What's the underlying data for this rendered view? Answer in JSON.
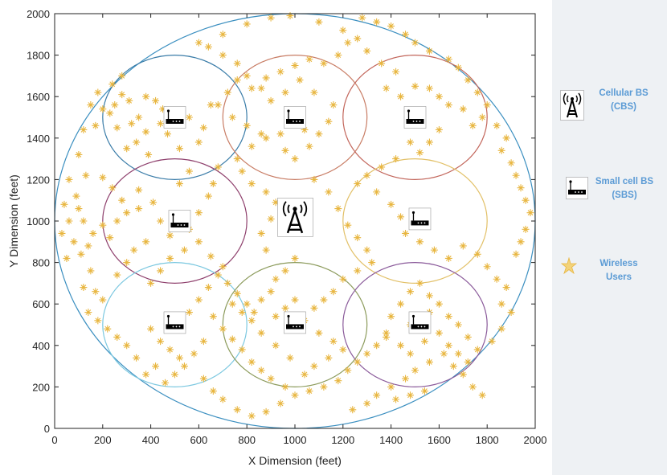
{
  "chart_data": {
    "type": "scatter",
    "xlabel": "X Dimension (feet)",
    "ylabel": "Y Dimension (feet)",
    "xlim": [
      0,
      2000
    ],
    "ylim": [
      0,
      2000
    ],
    "xticks": [
      0,
      200,
      400,
      600,
      800,
      1000,
      1200,
      1400,
      1600,
      1800,
      2000
    ],
    "yticks": [
      0,
      200,
      400,
      600,
      800,
      1000,
      1200,
      1400,
      1600,
      1800,
      2000
    ],
    "circles": [
      {
        "cx": 1000,
        "cy": 1000,
        "r": 1000,
        "color": "#3b8fc0"
      },
      {
        "cx": 500,
        "cy": 1500,
        "r": 300,
        "color": "#3a7ca8"
      },
      {
        "cx": 1000,
        "cy": 1500,
        "r": 300,
        "color": "#c87c64"
      },
      {
        "cx": 1500,
        "cy": 1500,
        "r": 300,
        "color": "#c2655a"
      },
      {
        "cx": 500,
        "cy": 1000,
        "r": 300,
        "color": "#8e3f6c"
      },
      {
        "cx": 1500,
        "cy": 1000,
        "r": 300,
        "color": "#e2c067"
      },
      {
        "cx": 500,
        "cy": 500,
        "r": 300,
        "color": "#7cc8e0"
      },
      {
        "cx": 1000,
        "cy": 500,
        "r": 300,
        "color": "#8c9b5c"
      },
      {
        "cx": 1500,
        "cy": 500,
        "r": 300,
        "color": "#8a5a9a"
      }
    ],
    "cellular_bs": {
      "x": 1000,
      "y": 1020
    },
    "small_cell_bs": [
      {
        "x": 500,
        "y": 1500
      },
      {
        "x": 1000,
        "y": 1500
      },
      {
        "x": 1500,
        "y": 1500
      },
      {
        "x": 520,
        "y": 1000
      },
      {
        "x": 1520,
        "y": 1010
      },
      {
        "x": 500,
        "y": 510
      },
      {
        "x": 1000,
        "y": 510
      },
      {
        "x": 1520,
        "y": 510
      }
    ],
    "users": [
      [
        250,
        1560
      ],
      [
        280,
        1610
      ],
      [
        310,
        1580
      ],
      [
        350,
        1500
      ],
      [
        320,
        1470
      ],
      [
        260,
        1450
      ],
      [
        230,
        1520
      ],
      [
        200,
        1540
      ],
      [
        380,
        1600
      ],
      [
        420,
        1580
      ],
      [
        440,
        1470
      ],
      [
        380,
        1430
      ],
      [
        340,
        1380
      ],
      [
        300,
        1350
      ],
      [
        390,
        1320
      ],
      [
        450,
        1540
      ],
      [
        560,
        1500
      ],
      [
        620,
        1450
      ],
      [
        650,
        1560
      ],
      [
        600,
        1380
      ],
      [
        520,
        1350
      ],
      [
        470,
        1420
      ],
      [
        280,
        1700
      ],
      [
        240,
        1660
      ],
      [
        180,
        1620
      ],
      [
        150,
        1560
      ],
      [
        170,
        1460
      ],
      [
        120,
        1440
      ],
      [
        100,
        1320
      ],
      [
        130,
        1220
      ],
      [
        90,
        1120
      ],
      [
        60,
        1000
      ],
      [
        80,
        900
      ],
      [
        110,
        840
      ],
      [
        150,
        760
      ],
      [
        170,
        660
      ],
      [
        200,
        620
      ],
      [
        120,
        680
      ],
      [
        260,
        740
      ],
      [
        300,
        800
      ],
      [
        330,
        860
      ],
      [
        380,
        900
      ],
      [
        230,
        920
      ],
      [
        200,
        980
      ],
      [
        260,
        1000
      ],
      [
        300,
        1040
      ],
      [
        350,
        1060
      ],
      [
        280,
        1100
      ],
      [
        240,
        1160
      ],
      [
        200,
        1210
      ],
      [
        350,
        1150
      ],
      [
        410,
        1090
      ],
      [
        440,
        1000
      ],
      [
        480,
        930
      ],
      [
        560,
        960
      ],
      [
        600,
        1040
      ],
      [
        640,
        1120
      ],
      [
        660,
        1180
      ],
      [
        680,
        1260
      ],
      [
        560,
        1240
      ],
      [
        520,
        1180
      ],
      [
        600,
        900
      ],
      [
        650,
        830
      ],
      [
        700,
        780
      ],
      [
        720,
        700
      ],
      [
        760,
        650
      ],
      [
        800,
        600
      ],
      [
        830,
        560
      ],
      [
        860,
        620
      ],
      [
        900,
        660
      ],
      [
        920,
        720
      ],
      [
        960,
        760
      ],
      [
        1000,
        820
      ],
      [
        880,
        860
      ],
      [
        860,
        940
      ],
      [
        900,
        1010
      ],
      [
        920,
        1090
      ],
      [
        880,
        1140
      ],
      [
        820,
        1180
      ],
      [
        780,
        1240
      ],
      [
        760,
        1300
      ],
      [
        820,
        1360
      ],
      [
        880,
        1400
      ],
      [
        940,
        1420
      ],
      [
        960,
        1340
      ],
      [
        1000,
        1300
      ],
      [
        1060,
        1360
      ],
      [
        1100,
        1420
      ],
      [
        1140,
        1480
      ],
      [
        1160,
        1560
      ],
      [
        1080,
        1620
      ],
      [
        1020,
        1680
      ],
      [
        960,
        1620
      ],
      [
        900,
        1580
      ],
      [
        860,
        1640
      ],
      [
        800,
        1700
      ],
      [
        760,
        1760
      ],
      [
        700,
        1800
      ],
      [
        640,
        1840
      ],
      [
        600,
        1860
      ],
      [
        700,
        1900
      ],
      [
        800,
        1950
      ],
      [
        900,
        1980
      ],
      [
        980,
        1990
      ],
      [
        1100,
        1960
      ],
      [
        1200,
        1920
      ],
      [
        1260,
        1880
      ],
      [
        1300,
        1820
      ],
      [
        1360,
        1760
      ],
      [
        1420,
        1720
      ],
      [
        1380,
        1640
      ],
      [
        1440,
        1600
      ],
      [
        1500,
        1650
      ],
      [
        1560,
        1640
      ],
      [
        1600,
        1600
      ],
      [
        1640,
        1560
      ],
      [
        1700,
        1540
      ],
      [
        1740,
        1460
      ],
      [
        1780,
        1500
      ],
      [
        1600,
        1440
      ],
      [
        1560,
        1380
      ],
      [
        1520,
        1330
      ],
      [
        1480,
        1380
      ],
      [
        1420,
        1300
      ],
      [
        1360,
        1260
      ],
      [
        1300,
        1220
      ],
      [
        1260,
        1180
      ],
      [
        1340,
        1140
      ],
      [
        1400,
        1080
      ],
      [
        1440,
        1020
      ],
      [
        1460,
        940
      ],
      [
        1520,
        900
      ],
      [
        1580,
        860
      ],
      [
        1640,
        820
      ],
      [
        1700,
        880
      ],
      [
        1760,
        840
      ],
      [
        1800,
        780
      ],
      [
        1840,
        720
      ],
      [
        1880,
        680
      ],
      [
        1860,
        600
      ],
      [
        1900,
        560
      ],
      [
        1860,
        480
      ],
      [
        1820,
        420
      ],
      [
        1760,
        380
      ],
      [
        1720,
        440
      ],
      [
        1680,
        500
      ],
      [
        1640,
        540
      ],
      [
        1600,
        600
      ],
      [
        1560,
        640
      ],
      [
        1520,
        700
      ],
      [
        1480,
        660
      ],
      [
        1440,
        600
      ],
      [
        1400,
        540
      ],
      [
        1380,
        460
      ],
      [
        1340,
        400
      ],
      [
        1300,
        360
      ],
      [
        1260,
        320
      ],
      [
        1220,
        280
      ],
      [
        1180,
        230
      ],
      [
        1120,
        200
      ],
      [
        1060,
        180
      ],
      [
        1000,
        160
      ],
      [
        960,
        200
      ],
      [
        900,
        240
      ],
      [
        860,
        280
      ],
      [
        820,
        320
      ],
      [
        780,
        380
      ],
      [
        740,
        430
      ],
      [
        700,
        480
      ],
      [
        660,
        540
      ],
      [
        620,
        420
      ],
      [
        580,
        360
      ],
      [
        540,
        300
      ],
      [
        500,
        260
      ],
      [
        460,
        220
      ],
      [
        420,
        300
      ],
      [
        380,
        260
      ],
      [
        340,
        340
      ],
      [
        300,
        400
      ],
      [
        260,
        440
      ],
      [
        220,
        480
      ],
      [
        180,
        520
      ],
      [
        140,
        560
      ],
      [
        620,
        240
      ],
      [
        660,
        180
      ],
      [
        700,
        140
      ],
      [
        760,
        90
      ],
      [
        820,
        60
      ],
      [
        880,
        80
      ],
      [
        940,
        120
      ],
      [
        1240,
        90
      ],
      [
        1300,
        120
      ],
      [
        1340,
        160
      ],
      [
        1400,
        200
      ],
      [
        1460,
        240
      ],
      [
        1500,
        280
      ],
      [
        1560,
        320
      ],
      [
        1620,
        360
      ],
      [
        1660,
        300
      ],
      [
        1700,
        260
      ],
      [
        1740,
        200
      ],
      [
        1780,
        160
      ],
      [
        1540,
        180
      ],
      [
        1480,
        160
      ],
      [
        1420,
        140
      ],
      [
        1860,
        1340
      ],
      [
        1900,
        1280
      ],
      [
        1920,
        1220
      ],
      [
        1940,
        1160
      ],
      [
        1960,
        1100
      ],
      [
        1980,
        1040
      ],
      [
        1960,
        960
      ],
      [
        1940,
        900
      ],
      [
        1920,
        840
      ],
      [
        1880,
        1400
      ],
      [
        1840,
        1460
      ],
      [
        1800,
        1560
      ],
      [
        1760,
        1620
      ],
      [
        1720,
        1680
      ],
      [
        1680,
        1740
      ],
      [
        1640,
        1780
      ],
      [
        1560,
        1820
      ],
      [
        1500,
        1860
      ],
      [
        1460,
        1900
      ],
      [
        1400,
        1940
      ],
      [
        1340,
        1960
      ],
      [
        1280,
        1980
      ],
      [
        1220,
        1860
      ],
      [
        1180,
        1800
      ],
      [
        1120,
        1760
      ],
      [
        1060,
        1780
      ],
      [
        1000,
        1750
      ],
      [
        940,
        1720
      ],
      [
        880,
        1690
      ],
      [
        820,
        1640
      ],
      [
        760,
        1680
      ],
      [
        720,
        1620
      ],
      [
        680,
        1560
      ],
      [
        740,
        1500
      ],
      [
        800,
        1460
      ],
      [
        860,
        1420
      ],
      [
        1040,
        1440
      ],
      [
        1080,
        1200
      ],
      [
        1140,
        1140
      ],
      [
        1180,
        1060
      ],
      [
        1220,
        980
      ],
      [
        1260,
        920
      ],
      [
        1300,
        860
      ],
      [
        1320,
        800
      ],
      [
        1260,
        760
      ],
      [
        1200,
        720
      ],
      [
        1160,
        660
      ],
      [
        1120,
        620
      ],
      [
        1080,
        580
      ],
      [
        1040,
        520
      ],
      [
        1100,
        460
      ],
      [
        1160,
        420
      ],
      [
        1200,
        380
      ],
      [
        1140,
        340
      ],
      [
        1080,
        300
      ],
      [
        1040,
        260
      ],
      [
        980,
        340
      ],
      [
        920,
        400
      ],
      [
        860,
        460
      ],
      [
        820,
        520
      ],
      [
        780,
        560
      ],
      [
        740,
        600
      ],
      [
        1000,
        620
      ],
      [
        960,
        580
      ],
      [
        920,
        540
      ],
      [
        1380,
        440
      ],
      [
        1440,
        400
      ],
      [
        1480,
        360
      ],
      [
        1540,
        420
      ],
      [
        1600,
        460
      ],
      [
        1640,
        400
      ],
      [
        1680,
        360
      ],
      [
        1720,
        320
      ],
      [
        1480,
        500
      ],
      [
        1560,
        560
      ],
      [
        400,
        480
      ],
      [
        440,
        420
      ],
      [
        480,
        380
      ],
      [
        520,
        340
      ],
      [
        560,
        560
      ],
      [
        600,
        620
      ],
      [
        640,
        680
      ],
      [
        680,
        740
      ],
      [
        400,
        700
      ],
      [
        440,
        760
      ],
      [
        480,
        820
      ],
      [
        540,
        860
      ],
      [
        100,
        1060
      ],
      [
        120,
        1000
      ],
      [
        160,
        940
      ],
      [
        140,
        880
      ],
      [
        60,
        1200
      ],
      [
        40,
        1080
      ],
      [
        30,
        940
      ],
      [
        50,
        820
      ]
    ]
  },
  "legend": {
    "cbs_label": "Cellular BS\n(CBS)",
    "sbs_label": "Small cell BS\n(SBS)",
    "users_label": "Wireless\nUsers"
  },
  "colors": {
    "user_marker": "#e8b640",
    "axes": "#222222",
    "outer_circle": "#3b8fc0",
    "legend_text": "#5b9bd5"
  }
}
